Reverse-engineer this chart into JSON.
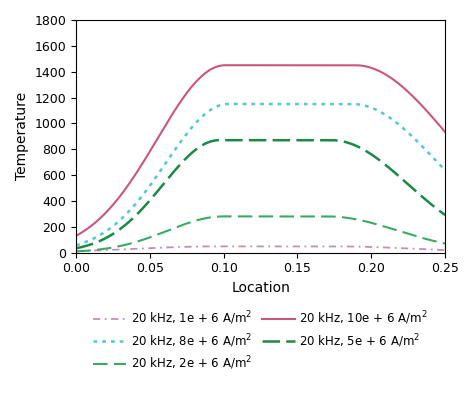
{
  "title": "",
  "xlabel": "Location",
  "ylabel": "Temperature",
  "xlim": [
    0,
    0.25
  ],
  "ylim": [
    0,
    1800
  ],
  "xticks": [
    0,
    0.05,
    0.1,
    0.15,
    0.2,
    0.25
  ],
  "yticks": [
    0,
    200,
    400,
    600,
    800,
    1000,
    1200,
    1400,
    1600,
    1800
  ],
  "curves": [
    {
      "label": "20 kHz, 1e + 6 A/m²",
      "color": "#c090b8",
      "linestyle": "dashdot",
      "linewidth": 1.3,
      "peak": 48,
      "peak_x": 0.135,
      "sigma_l": 0.055,
      "sigma_r": 0.055,
      "flat_half": 0.04,
      "base": 2
    },
    {
      "label": "20 kHz, 2e + 6 A/m²",
      "color": "#3aaa65",
      "linestyle": "dashed",
      "linewidth": 1.5,
      "peak": 280,
      "peak_x": 0.135,
      "sigma_l": 0.038,
      "sigma_r": 0.048,
      "flat_half": 0.035,
      "base": 3
    },
    {
      "label": "20 kHz, 5e + 6 A/m²",
      "color": "#1a8a45",
      "linestyle": "dashed",
      "linewidth": 1.8,
      "peak": 870,
      "peak_x": 0.135,
      "sigma_l": 0.038,
      "sigma_r": 0.052,
      "flat_half": 0.038,
      "base": 3
    },
    {
      "label": "20 kHz, 8e + 6 A/m²",
      "color": "#50c8d8",
      "linestyle": "dotted",
      "linewidth": 1.8,
      "peak": 1150,
      "peak_x": 0.145,
      "sigma_l": 0.042,
      "sigma_r": 0.058,
      "flat_half": 0.042,
      "base": 5
    },
    {
      "label": "20 kHz, 10e + 6 A/m²",
      "color": "#cc5580",
      "linestyle": "solid",
      "linewidth": 1.5,
      "peak": 1450,
      "peak_x": 0.145,
      "sigma_l": 0.046,
      "sigma_r": 0.065,
      "flat_half": 0.044,
      "base": 5
    }
  ],
  "legend_fontsize": 8.5,
  "axis_fontsize": 10,
  "tick_fontsize": 9
}
